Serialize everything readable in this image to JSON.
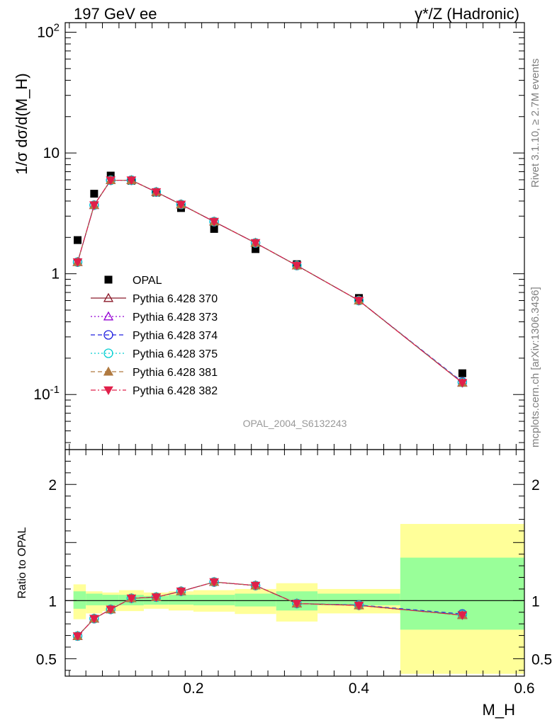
{
  "header": {
    "left_title": "197 GeV ee",
    "right_title": "γ*/Z (Hadronic)"
  },
  "side_text": {
    "rivet": "Rivet 3.1.10, ≥ 2.7M events",
    "mcplots": "mcplots.cern.ch [arXiv:1306.3436]"
  },
  "colors": {
    "band_inner": "#99ff99",
    "band_outer": "#ffff99",
    "opal": "#000000",
    "p370": "#8b1a2a",
    "p373": "#9400d3",
    "p374": "#2020e0",
    "p375": "#00ced1",
    "p381": "#b07a40",
    "p382": "#e0204a"
  },
  "chart_data": [
    {
      "type": "scatter",
      "panel": "main",
      "ylabel": "1/σ dσ/d(M_H)",
      "yscale": "log",
      "xlim": [
        0.045,
        0.6
      ],
      "ylim": [
        0.035,
        120
      ],
      "yticks": [
        {
          "value": 0.1,
          "label": "10^{-1}"
        },
        {
          "value": 1,
          "label": "1"
        },
        {
          "value": 10,
          "label": "10"
        },
        {
          "value": 100,
          "label": "10^{2}"
        }
      ],
      "annotation": "OPAL_2004_S6132243",
      "legend_position": "left-center",
      "x": [
        0.06,
        0.08,
        0.1,
        0.125,
        0.155,
        0.185,
        0.225,
        0.275,
        0.325,
        0.4,
        0.525
      ],
      "series": [
        {
          "name": "OPAL",
          "style": "square",
          "color_key": "opal",
          "values": [
            1.9,
            4.6,
            6.5,
            5.9,
            4.7,
            3.5,
            2.35,
            1.6,
            1.2,
            0.63,
            0.15
          ]
        },
        {
          "name": "Pythia 6.428 370",
          "style": "triangle-open",
          "line": "solid",
          "color_key": "p370",
          "values": [
            1.25,
            3.7,
            5.95,
            5.95,
            4.75,
            3.75,
            2.7,
            1.8,
            1.17,
            0.6,
            0.125
          ]
        },
        {
          "name": "Pythia 6.428 373",
          "style": "triangle-open",
          "line": "dotted",
          "color_key": "p373",
          "values": [
            1.25,
            3.7,
            5.95,
            5.95,
            4.75,
            3.75,
            2.7,
            1.8,
            1.17,
            0.6,
            0.126
          ]
        },
        {
          "name": "Pythia 6.428 374",
          "style": "circle-open",
          "line": "dashed",
          "color_key": "p374",
          "values": [
            1.25,
            3.7,
            5.95,
            5.95,
            4.75,
            3.75,
            2.7,
            1.8,
            1.17,
            0.6,
            0.127
          ]
        },
        {
          "name": "Pythia 6.428 375",
          "style": "circle-open",
          "line": "dotted",
          "color_key": "p375",
          "values": [
            1.25,
            3.7,
            5.95,
            5.95,
            4.75,
            3.75,
            2.7,
            1.8,
            1.17,
            0.6,
            0.126
          ]
        },
        {
          "name": "Pythia 6.428 381",
          "style": "triangle-filled",
          "line": "dashed",
          "color_key": "p381",
          "values": [
            1.25,
            3.7,
            5.95,
            5.95,
            4.75,
            3.75,
            2.7,
            1.8,
            1.17,
            0.6,
            0.125
          ]
        },
        {
          "name": "Pythia 6.428 382",
          "style": "triangle-down-filled",
          "line": "dashdot",
          "color_key": "p382",
          "values": [
            1.25,
            3.7,
            5.95,
            5.95,
            4.75,
            3.75,
            2.7,
            1.8,
            1.17,
            0.6,
            0.125
          ]
        }
      ]
    },
    {
      "type": "scatter",
      "panel": "ratio",
      "ylabel": "Ratio to OPAL",
      "xlabel": "M_H",
      "xlim": [
        0.045,
        0.6
      ],
      "ylim": [
        0.35,
        2.3
      ],
      "yticks": [
        {
          "value": 0.5,
          "label": "0.5"
        },
        {
          "value": 1,
          "label": "1"
        },
        {
          "value": 2,
          "label": "2"
        }
      ],
      "xticks": [
        {
          "value": 0.2,
          "label": "0.2"
        },
        {
          "value": 0.4,
          "label": "0.4"
        },
        {
          "value": 0.6,
          "label": "0.6"
        }
      ],
      "bands": [
        {
          "x0": 0.055,
          "x1": 0.07,
          "inner": [
            0.93,
            1.08
          ],
          "outer": [
            0.84,
            1.14
          ]
        },
        {
          "x0": 0.07,
          "x1": 0.09,
          "inner": [
            0.96,
            1.06
          ],
          "outer": [
            0.89,
            1.08
          ]
        },
        {
          "x0": 0.09,
          "x1": 0.11,
          "inner": [
            0.96,
            1.05
          ],
          "outer": [
            0.91,
            1.07
          ]
        },
        {
          "x0": 0.11,
          "x1": 0.14,
          "inner": [
            0.96,
            1.05
          ],
          "outer": [
            0.91,
            1.09
          ]
        },
        {
          "x0": 0.14,
          "x1": 0.17,
          "inner": [
            0.965,
            1.04
          ],
          "outer": [
            0.93,
            1.07
          ]
        },
        {
          "x0": 0.17,
          "x1": 0.2,
          "inner": [
            0.965,
            1.05
          ],
          "outer": [
            0.915,
            1.08
          ]
        },
        {
          "x0": 0.2,
          "x1": 0.25,
          "inner": [
            0.96,
            1.05
          ],
          "outer": [
            0.905,
            1.09
          ]
        },
        {
          "x0": 0.25,
          "x1": 0.3,
          "inner": [
            0.95,
            1.06
          ],
          "outer": [
            0.885,
            1.1
          ]
        },
        {
          "x0": 0.3,
          "x1": 0.35,
          "inner": [
            0.915,
            1.08
          ],
          "outer": [
            0.82,
            1.15
          ]
        },
        {
          "x0": 0.35,
          "x1": 0.45,
          "inner": [
            0.96,
            1.06
          ],
          "outer": [
            0.89,
            1.1
          ]
        },
        {
          "x0": 0.45,
          "x1": 0.6,
          "inner": [
            0.75,
            1.37
          ],
          "outer": [
            0.37,
            1.66
          ]
        }
      ],
      "x": [
        0.06,
        0.08,
        0.1,
        0.125,
        0.155,
        0.185,
        0.225,
        0.275,
        0.325,
        0.4,
        0.525
      ],
      "series": [
        {
          "name": "Pythia 6.428 370",
          "color_key": "p370",
          "style": "triangle-open",
          "line": "solid",
          "values": [
            0.695,
            0.845,
            0.925,
            1.02,
            1.03,
            1.08,
            1.16,
            1.13,
            0.975,
            0.96,
            0.875
          ]
        },
        {
          "name": "Pythia 6.428 373",
          "color_key": "p373",
          "style": "triangle-open",
          "line": "dotted",
          "values": [
            0.695,
            0.845,
            0.925,
            1.02,
            1.03,
            1.08,
            1.16,
            1.13,
            0.975,
            0.96,
            0.88
          ]
        },
        {
          "name": "Pythia 6.428 374",
          "color_key": "p374",
          "style": "circle-open",
          "line": "dashed",
          "values": [
            0.695,
            0.845,
            0.925,
            1.02,
            1.03,
            1.08,
            1.16,
            1.13,
            0.975,
            0.962,
            0.885
          ]
        },
        {
          "name": "Pythia 6.428 375",
          "color_key": "p375",
          "style": "circle-open",
          "line": "dotted",
          "values": [
            0.695,
            0.845,
            0.925,
            1.02,
            1.03,
            1.08,
            1.16,
            1.13,
            0.975,
            0.96,
            0.88
          ]
        },
        {
          "name": "Pythia 6.428 381",
          "color_key": "p381",
          "style": "triangle-filled",
          "line": "dashed",
          "values": [
            0.695,
            0.845,
            0.925,
            1.02,
            1.03,
            1.08,
            1.16,
            1.13,
            0.975,
            0.958,
            0.875
          ]
        },
        {
          "name": "Pythia 6.428 382",
          "color_key": "p382",
          "style": "triangle-down-filled",
          "line": "dashdot",
          "values": [
            0.695,
            0.845,
            0.925,
            1.02,
            1.03,
            1.08,
            1.16,
            1.13,
            0.975,
            0.958,
            0.875
          ]
        }
      ]
    }
  ]
}
